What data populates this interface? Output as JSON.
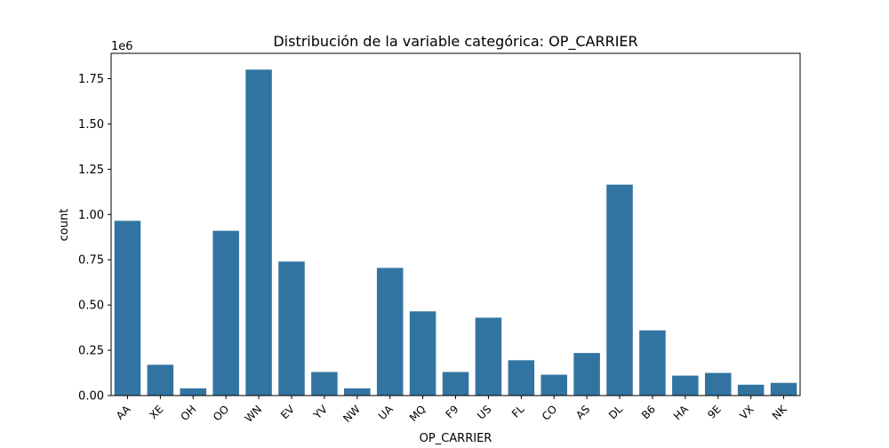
{
  "chart_data": {
    "type": "bar",
    "title": "Distribución de la variable categórica: OP_CARRIER",
    "xlabel": "OP_CARRIER",
    "ylabel": "count",
    "y_scale_label": "1e6",
    "ylim": [
      0,
      1.89
    ],
    "yticks": [
      "0.00",
      "0.25",
      "0.50",
      "0.75",
      "1.00",
      "1.25",
      "1.50",
      "1.75"
    ],
    "ytick_values": [
      0,
      0.25,
      0.5,
      0.75,
      1.0,
      1.25,
      1.5,
      1.75
    ],
    "categories": [
      "AA",
      "XE",
      "OH",
      "OO",
      "WN",
      "EV",
      "YV",
      "NW",
      "UA",
      "MQ",
      "F9",
      "US",
      "FL",
      "CO",
      "AS",
      "DL",
      "B6",
      "HA",
      "9E",
      "VX",
      "NK"
    ],
    "values": [
      0.965,
      0.17,
      0.04,
      0.91,
      1.8,
      0.74,
      0.13,
      0.04,
      0.705,
      0.465,
      0.13,
      0.43,
      0.195,
      0.115,
      0.235,
      1.165,
      0.36,
      0.11,
      0.125,
      0.06,
      0.07
    ],
    "grid": false,
    "bar_color": "#3274a1",
    "frame_color": "#000000"
  }
}
